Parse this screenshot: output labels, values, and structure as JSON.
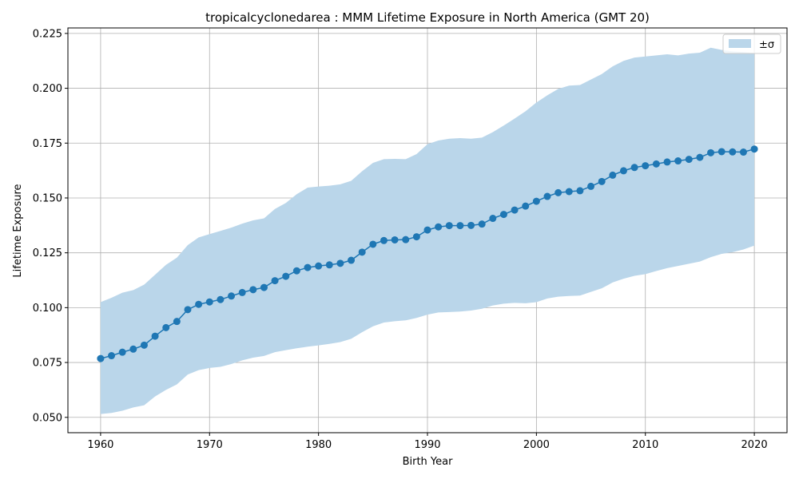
{
  "chart_data": {
    "type": "line",
    "title": "tropicalcyclonedarea : MMM Lifetime Exposure in North America (GMT 20)",
    "xlabel": "Birth Year",
    "ylabel": "Lifetime Exposure",
    "xlim": [
      1957,
      2023
    ],
    "ylim": [
      0.043,
      0.2275
    ],
    "xticks": [
      1960,
      1970,
      1980,
      1990,
      2000,
      2010,
      2020
    ],
    "xtick_labels": [
      "1960",
      "1970",
      "1980",
      "1990",
      "2000",
      "2010",
      "2020"
    ],
    "yticks": [
      0.05,
      0.075,
      0.1,
      0.125,
      0.15,
      0.175,
      0.2,
      0.225
    ],
    "ytick_labels": [
      "0.050",
      "0.075",
      "0.100",
      "0.125",
      "0.150",
      "0.175",
      "0.200",
      "0.225"
    ],
    "grid": true,
    "legend": {
      "position": "top-right",
      "entries": [
        {
          "label": "±σ",
          "kind": "band"
        }
      ]
    },
    "colors": {
      "line": "#1f77b4",
      "band": "#bad6ea",
      "grid": "#b0b0b0"
    },
    "x": [
      1960,
      1961,
      1962,
      1963,
      1964,
      1965,
      1966,
      1967,
      1968,
      1969,
      1970,
      1971,
      1972,
      1973,
      1974,
      1975,
      1976,
      1977,
      1978,
      1979,
      1980,
      1981,
      1982,
      1983,
      1984,
      1985,
      1986,
      1987,
      1988,
      1989,
      1990,
      1991,
      1992,
      1993,
      1994,
      1995,
      1996,
      1997,
      1998,
      1999,
      2000,
      2001,
      2002,
      2003,
      2004,
      2005,
      2006,
      2007,
      2008,
      2009,
      2010,
      2011,
      2012,
      2013,
      2014,
      2015,
      2016,
      2017,
      2018,
      2019,
      2020
    ],
    "series": [
      {
        "kind": "line",
        "values": [
          0.0768,
          0.0781,
          0.0797,
          0.0811,
          0.0829,
          0.087,
          0.0909,
          0.0937,
          0.0991,
          0.1015,
          0.1026,
          0.1037,
          0.1053,
          0.1069,
          0.1082,
          0.1092,
          0.1123,
          0.1143,
          0.1168,
          0.1183,
          0.119,
          0.1195,
          0.1202,
          0.1216,
          0.1253,
          0.1289,
          0.1306,
          0.1309,
          0.131,
          0.1323,
          0.1354,
          0.1368,
          0.1374,
          0.1374,
          0.1375,
          0.1381,
          0.1407,
          0.1425,
          0.1445,
          0.1463,
          0.1485,
          0.1507,
          0.1524,
          0.1529,
          0.1533,
          0.1553,
          0.1575,
          0.1604,
          0.1624,
          0.1639,
          0.1647,
          0.1655,
          0.1664,
          0.1669,
          0.1676,
          0.1685,
          0.1706,
          0.1711,
          0.171,
          0.1709,
          0.1723
        ]
      },
      {
        "name": "±σ",
        "kind": "band",
        "lower": [
          0.0515,
          0.052,
          0.053,
          0.0545,
          0.0555,
          0.0595,
          0.0625,
          0.065,
          0.0695,
          0.0715,
          0.0725,
          0.073,
          0.0743,
          0.076,
          0.0772,
          0.078,
          0.0797,
          0.0806,
          0.0815,
          0.0822,
          0.0828,
          0.0835,
          0.0843,
          0.0858,
          0.0888,
          0.0915,
          0.0932,
          0.0938,
          0.0942,
          0.0953,
          0.0968,
          0.0978,
          0.098,
          0.0982,
          0.0987,
          0.0995,
          0.101,
          0.1018,
          0.1022,
          0.102,
          0.1025,
          0.1042,
          0.105,
          0.1053,
          0.1055,
          0.1072,
          0.1088,
          0.1115,
          0.1132,
          0.1145,
          0.1153,
          0.1167,
          0.118,
          0.119,
          0.12,
          0.121,
          0.123,
          0.1245,
          0.1253,
          0.1265,
          0.1283
        ],
        "upper": [
          0.1025,
          0.1045,
          0.1068,
          0.108,
          0.1105,
          0.115,
          0.1195,
          0.1228,
          0.1285,
          0.132,
          0.1335,
          0.135,
          0.1365,
          0.1383,
          0.1398,
          0.1407,
          0.145,
          0.1477,
          0.1517,
          0.1547,
          0.1552,
          0.1556,
          0.1562,
          0.1578,
          0.1622,
          0.166,
          0.1677,
          0.1678,
          0.1677,
          0.17,
          0.1745,
          0.1762,
          0.177,
          0.1773,
          0.177,
          0.1775,
          0.18,
          0.183,
          0.1862,
          0.1895,
          0.1935,
          0.1968,
          0.1997,
          0.2012,
          0.2015,
          0.204,
          0.2065,
          0.21,
          0.2125,
          0.214,
          0.2145,
          0.215,
          0.2155,
          0.215,
          0.2158,
          0.2162,
          0.2185,
          0.2175,
          0.2168,
          0.2165,
          0.216
        ]
      }
    ]
  }
}
